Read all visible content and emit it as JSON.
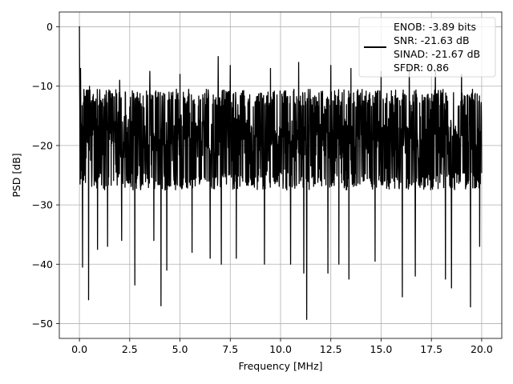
{
  "chart_data": {
    "type": "line",
    "title": "",
    "xlabel": "Frequency [MHz]",
    "ylabel": "PSD [dB]",
    "xlim": [
      -1.0,
      21.0
    ],
    "ylim": [
      -52.5,
      2.5
    ],
    "x_ticks": [
      0.0,
      2.5,
      5.0,
      7.5,
      10.0,
      12.5,
      15.0,
      17.5,
      20.0
    ],
    "x_tick_labels": [
      "0.0",
      "2.5",
      "5.0",
      "7.5",
      "10.0",
      "12.5",
      "15.0",
      "17.5",
      "20.0"
    ],
    "y_ticks": [
      0,
      -10,
      -20,
      -30,
      -40,
      -50
    ],
    "y_tick_labels": [
      "0",
      "−10",
      "−20",
      "−30",
      "−40",
      "−50"
    ],
    "grid": true,
    "legend_position": "top-right",
    "legend_lines": [
      "ENOB: -3.89 bits",
      "SNR: -21.63 dB",
      "SINAD: -21.67 dB",
      "SFDR: 0.86"
    ],
    "series": [
      {
        "color": "#000000",
        "x_range": [
          0.0,
          20.0
        ],
        "peak": {
          "x": 0.0,
          "y": 0.0
        },
        "noise_floor": {
          "typical_top": -12,
          "typical_bottom": -26,
          "center": -19
        },
        "upper_excursions": [
          {
            "x": 0.05,
            "y": -7
          },
          {
            "x": 0.5,
            "y": -10
          },
          {
            "x": 2.0,
            "y": -9
          },
          {
            "x": 3.5,
            "y": -7.5
          },
          {
            "x": 5.0,
            "y": -8
          },
          {
            "x": 6.9,
            "y": -5
          },
          {
            "x": 7.5,
            "y": -6.5
          },
          {
            "x": 9.5,
            "y": -7
          },
          {
            "x": 10.9,
            "y": -6
          },
          {
            "x": 12.5,
            "y": -6.5
          },
          {
            "x": 13.5,
            "y": -7
          },
          {
            "x": 15.0,
            "y": -7.5
          },
          {
            "x": 16.4,
            "y": -6.5
          },
          {
            "x": 17.7,
            "y": -7.5
          },
          {
            "x": 19.0,
            "y": -8
          }
        ],
        "lower_excursions": [
          {
            "x": 0.15,
            "y": -40.5
          },
          {
            "x": 0.45,
            "y": -46
          },
          {
            "x": 0.9,
            "y": -37.5
          },
          {
            "x": 1.4,
            "y": -37
          },
          {
            "x": 2.1,
            "y": -36
          },
          {
            "x": 2.75,
            "y": -43.5
          },
          {
            "x": 3.7,
            "y": -36
          },
          {
            "x": 4.05,
            "y": -47
          },
          {
            "x": 4.35,
            "y": -41
          },
          {
            "x": 5.6,
            "y": -38
          },
          {
            "x": 6.5,
            "y": -39
          },
          {
            "x": 7.05,
            "y": -40
          },
          {
            "x": 7.8,
            "y": -39
          },
          {
            "x": 9.2,
            "y": -40
          },
          {
            "x": 10.5,
            "y": -40
          },
          {
            "x": 11.15,
            "y": -41.5
          },
          {
            "x": 11.3,
            "y": -49.3
          },
          {
            "x": 12.35,
            "y": -41.5
          },
          {
            "x": 12.9,
            "y": -40
          },
          {
            "x": 13.4,
            "y": -42.5
          },
          {
            "x": 14.7,
            "y": -39.5
          },
          {
            "x": 16.05,
            "y": -45.5
          },
          {
            "x": 16.7,
            "y": -42
          },
          {
            "x": 18.2,
            "y": -42.5
          },
          {
            "x": 18.5,
            "y": -44
          },
          {
            "x": 19.45,
            "y": -47.2
          },
          {
            "x": 19.9,
            "y": -37
          }
        ]
      }
    ]
  }
}
